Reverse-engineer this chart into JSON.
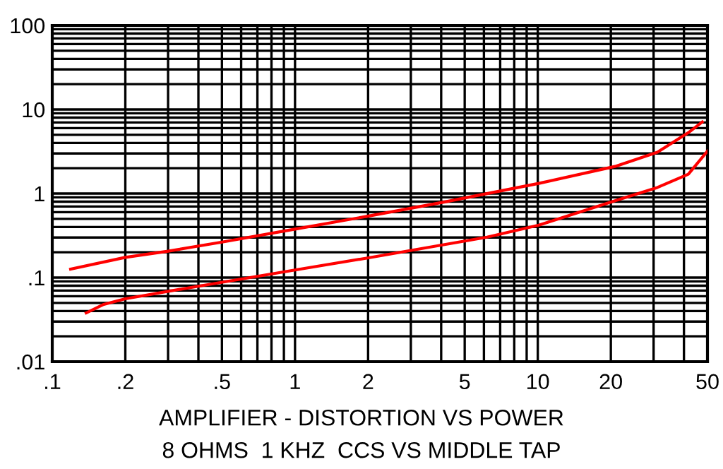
{
  "chart_data": {
    "type": "line",
    "title": "AMPLIFIER - DISTORTION VS POWER",
    "subtitle": "8 OHMS  1 KHZ  CCS VS MIDDLE TAP",
    "log": "xy",
    "grid": true,
    "legend": false,
    "marker": "none",
    "line_style": "solid",
    "xlim": [
      0.1,
      50
    ],
    "xticks": [
      {
        "value": 0.1,
        "label": ".1"
      },
      {
        "value": 0.2,
        "label": ".2"
      },
      {
        "value": 0.5,
        "label": ".5"
      },
      1,
      2,
      5,
      10,
      20,
      50
    ],
    "ylim": [
      0.01,
      100
    ],
    "yticks": [
      {
        "value": 0.01,
        "label": ".01"
      },
      {
        "value": 0.1,
        "label": ".1"
      },
      1,
      10,
      100
    ],
    "series": [
      {
        "color": "#ff0000",
        "x": [
          0.119,
          0.2,
          0.3,
          0.505,
          1.0,
          2.01,
          4.07,
          10.1,
          20.8,
          31.1,
          41.7,
          47.6
        ],
        "values": [
          0.126,
          0.174,
          0.206,
          0.266,
          0.377,
          0.54,
          0.787,
          1.32,
          2.1,
          3.1,
          5.3,
          7.1
        ]
      },
      {
        "color": "#ff0000",
        "x": [
          0.138,
          0.163,
          0.2,
          0.4,
          1.0,
          2.01,
          6.18,
          10.1,
          20.8,
          31.1,
          41.7,
          50
        ],
        "values": [
          0.038,
          0.048,
          0.056,
          0.079,
          0.123,
          0.172,
          0.303,
          0.42,
          0.82,
          1.18,
          1.7,
          3.2
        ]
      }
    ]
  }
}
